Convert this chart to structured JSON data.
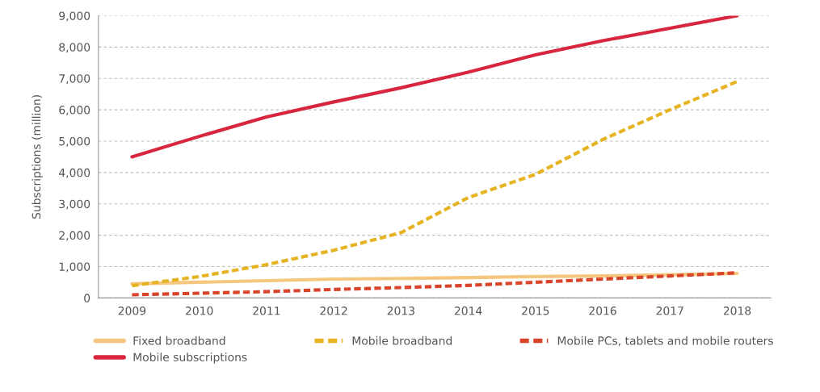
{
  "chart_data": {
    "type": "line",
    "ylabel": "Subscriptions (million)",
    "categories": [
      "2009",
      "2010",
      "2011",
      "2012",
      "2013",
      "2014",
      "2015",
      "2016",
      "2017",
      "2018"
    ],
    "series": [
      {
        "name": "Fixed broadband",
        "color": "#f5c77e",
        "line_style": "solid",
        "values": [
          450,
          500,
          550,
          600,
          620,
          650,
          680,
          700,
          740,
          780
        ]
      },
      {
        "name": "Mobile broadband",
        "color": "#e6b422",
        "line_style": "dashed",
        "values": [
          390,
          680,
          1060,
          1520,
          2080,
          3200,
          3940,
          5050,
          6000,
          6900
        ]
      },
      {
        "name": "Mobile PCs, tablets and mobile routers",
        "color": "#d9452b",
        "line_style": "dashed",
        "values": [
          100,
          150,
          200,
          270,
          330,
          400,
          500,
          600,
          700,
          800
        ]
      },
      {
        "name": "Mobile subscriptions",
        "color": "#d7263d",
        "line_style": "solid",
        "values": [
          4500,
          5150,
          5770,
          6250,
          6700,
          7200,
          7750,
          8200,
          8600,
          9000
        ]
      }
    ],
    "ylim": [
      0,
      9000
    ],
    "yticks": [
      {
        "value": 0,
        "label": "0"
      },
      {
        "value": 1000,
        "label": "1,000"
      },
      {
        "value": 2000,
        "label": "2,000"
      },
      {
        "value": 3000,
        "label": "3,000"
      },
      {
        "value": 4000,
        "label": "4,000"
      },
      {
        "value": 5000,
        "label": "5,000"
      },
      {
        "value": 6000,
        "label": "6,000"
      },
      {
        "value": 7000,
        "label": "7,000"
      },
      {
        "value": 8000,
        "label": "8,000"
      },
      {
        "value": 9000,
        "label": "9,000"
      }
    ],
    "grid": "y",
    "legend": "bottom"
  }
}
